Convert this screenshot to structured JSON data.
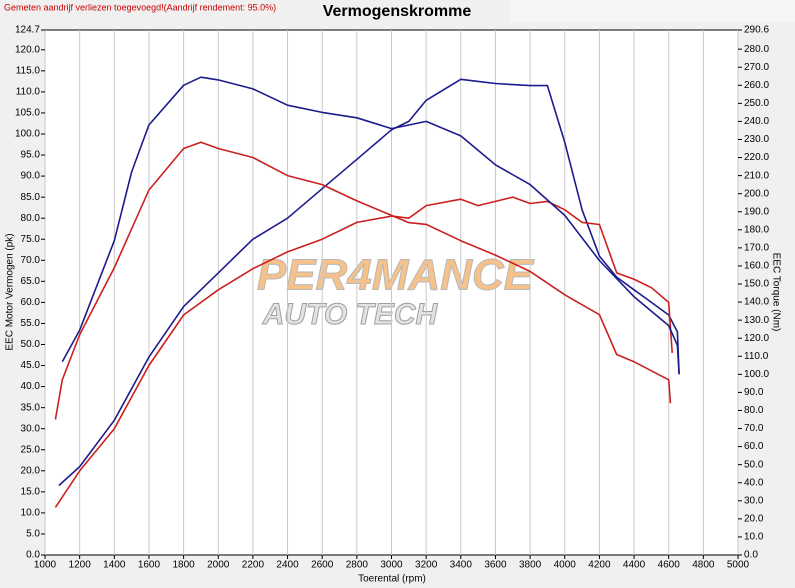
{
  "chart_data": {
    "type": "line",
    "title": "Vermogenskromme",
    "note": "Gemeten aandrijf verliezen toegevoegd!(Aandrijf rendement: 95.0%)",
    "watermark": [
      "PER4MANCE",
      "AUTO TECH"
    ],
    "xlabel": "Toerental (rpm)",
    "ylabel": "EEC Motor Vermogen (pk)",
    "y2label": "EEC Torque (Nm)",
    "xlim": [
      1000,
      5000
    ],
    "xticks": [
      1000,
      1200,
      1400,
      1600,
      1800,
      2000,
      2200,
      2400,
      2600,
      2800,
      3000,
      3200,
      3400,
      3600,
      3800,
      4000,
      4200,
      4400,
      4600,
      4800,
      5000
    ],
    "ylim": [
      0,
      124.7
    ],
    "yticks": [
      {
        "value": 0,
        "label": "0.0"
      },
      {
        "value": 5,
        "label": "5.0"
      },
      {
        "value": 10,
        "label": "10.0"
      },
      {
        "value": 15,
        "label": "15.0"
      },
      {
        "value": 20,
        "label": "20.0"
      },
      {
        "value": 25,
        "label": "25.0"
      },
      {
        "value": 30,
        "label": "30.0"
      },
      {
        "value": 35,
        "label": "35.0"
      },
      {
        "value": 40,
        "label": "40.0"
      },
      {
        "value": 45,
        "label": "45.0"
      },
      {
        "value": 50,
        "label": "50.0"
      },
      {
        "value": 55,
        "label": "55.0"
      },
      {
        "value": 60,
        "label": "60.0"
      },
      {
        "value": 65,
        "label": "65.0"
      },
      {
        "value": 70,
        "label": "70.0"
      },
      {
        "value": 75,
        "label": "75.0"
      },
      {
        "value": 80,
        "label": "80.0"
      },
      {
        "value": 85,
        "label": "85.0"
      },
      {
        "value": 90,
        "label": "90.0"
      },
      {
        "value": 95,
        "label": "95.0"
      },
      {
        "value": 100,
        "label": "100.0"
      },
      {
        "value": 105,
        "label": "105.0"
      },
      {
        "value": 110,
        "label": "110.0"
      },
      {
        "value": 115,
        "label": "115.0"
      },
      {
        "value": 120,
        "label": "120.0"
      },
      124.7
    ],
    "y2lim": [
      0,
      290.6
    ],
    "y2ticks": [
      {
        "value": 0,
        "label": "0.0"
      },
      {
        "value": 10,
        "label": "10.0"
      },
      {
        "value": 20,
        "label": "20.0"
      },
      {
        "value": 30,
        "label": "30.0"
      },
      {
        "value": 40,
        "label": "40.0"
      },
      {
        "value": 50,
        "label": "50.0"
      },
      {
        "value": 60,
        "label": "60.0"
      },
      {
        "value": 70,
        "label": "70.0"
      },
      {
        "value": 80,
        "label": "80.0"
      },
      {
        "value": 90,
        "label": "90.0"
      },
      {
        "value": 100,
        "label": "100.0"
      },
      {
        "value": 110,
        "label": "110.0"
      },
      {
        "value": 120,
        "label": "120.0"
      },
      {
        "value": 130,
        "label": "130.0"
      },
      {
        "value": 140,
        "label": "140.0"
      },
      {
        "value": 150,
        "label": "150.0"
      },
      {
        "value": 160,
        "label": "160.0"
      },
      {
        "value": 170,
        "label": "170.0"
      },
      {
        "value": 180,
        "label": "180.0"
      },
      {
        "value": 190,
        "label": "190.0"
      },
      {
        "value": 200,
        "label": "200.0"
      },
      {
        "value": 210,
        "label": "210.0"
      },
      {
        "value": 220,
        "label": "220.0"
      },
      {
        "value": 230,
        "label": "230.0"
      },
      {
        "value": 240,
        "label": "240.0"
      },
      {
        "value": 250,
        "label": "250.0"
      },
      {
        "value": 260,
        "label": "260.0"
      },
      {
        "value": 270,
        "label": "270.0"
      },
      {
        "value": 280,
        "label": "280.0"
      },
      290.6
    ],
    "grid": "x",
    "series": [
      {
        "color": "#1c1c8c",
        "axis": "y",
        "x": [
          1080,
          1200,
          1400,
          1600,
          1800,
          2000,
          2200,
          2400,
          2600,
          2800,
          3000,
          3100,
          3200,
          3400,
          3500,
          3600,
          3800,
          3900,
          4000,
          4100,
          4200,
          4300,
          4400,
          4500,
          4600,
          4650,
          4660
        ],
        "values": [
          16.5,
          21,
          32,
          47,
          59,
          67,
          75,
          80,
          87,
          94,
          101,
          103,
          108,
          113,
          112.5,
          112,
          111.5,
          111.5,
          98,
          82,
          71,
          66,
          63,
          60,
          57,
          53,
          43
        ]
      },
      {
        "color": "#cc2020",
        "axis": "y",
        "x": [
          1060,
          1200,
          1400,
          1600,
          1800,
          2000,
          2200,
          2400,
          2600,
          2800,
          3000,
          3100,
          3200,
          3400,
          3500,
          3600,
          3700,
          3800,
          3900,
          4000,
          4100,
          4200,
          4300,
          4400,
          4500,
          4600,
          4620
        ],
        "values": [
          11.3,
          20,
          30,
          45,
          57,
          63,
          68,
          72,
          75,
          79,
          80.5,
          80,
          83,
          84.5,
          83,
          84,
          85,
          83.5,
          84,
          82,
          79,
          78.5,
          67,
          65.5,
          63.5,
          60,
          48
        ]
      },
      {
        "color": "#1c1c8c",
        "axis": "y2",
        "x": [
          1100,
          1200,
          1400,
          1500,
          1600,
          1800,
          1900,
          2000,
          2200,
          2400,
          2600,
          2800,
          3000,
          3200,
          3400,
          3600,
          3800,
          4000,
          4200,
          4400,
          4600,
          4650,
          4660
        ],
        "values": [
          107,
          124.5,
          174,
          212,
          238,
          260,
          264.5,
          263,
          258,
          249,
          245,
          242,
          236,
          240,
          232,
          216,
          205,
          188,
          163,
          143,
          127,
          116,
          100
        ]
      },
      {
        "color": "#cc2020",
        "axis": "y2",
        "x": [
          1060,
          1100,
          1200,
          1400,
          1600,
          1800,
          1900,
          2000,
          2200,
          2400,
          2600,
          2800,
          3000,
          3100,
          3200,
          3400,
          3600,
          3800,
          4000,
          4200,
          4300,
          4400,
          4600,
          4610
        ],
        "values": [
          75,
          97,
          122,
          159,
          202,
          225,
          228.5,
          225,
          220,
          210,
          205,
          196,
          188,
          184,
          183,
          174,
          166,
          157,
          144,
          133,
          111,
          107,
          97,
          84
        ]
      }
    ]
  }
}
